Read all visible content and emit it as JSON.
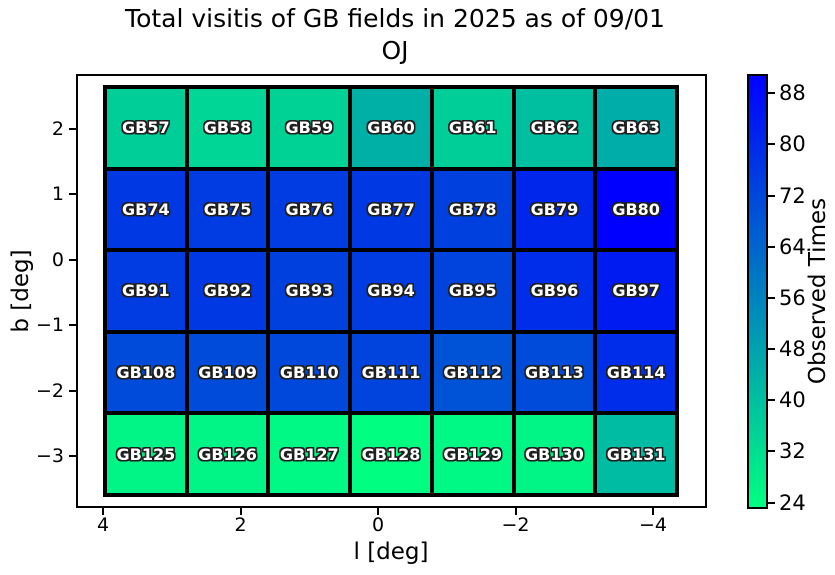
{
  "chart_data": {
    "type": "heatmap",
    "title": "Total visitis of GB fields in 2025 as of 09/01",
    "subtitle": "OJ",
    "xlabel": "l [deg]",
    "ylabel": "b [deg]",
    "x_axis_reversed": true,
    "x_ticks": [
      "4",
      "2",
      "0",
      "−2",
      "−4"
    ],
    "y_ticks": [
      "2",
      "1",
      "0",
      "−1",
      "−2",
      "−3"
    ],
    "grid": {
      "rows": 5,
      "cols": 7
    },
    "colorbar": {
      "label": "Observed Times",
      "ticks": [
        88,
        80,
        72,
        64,
        56,
        48,
        40,
        32,
        24
      ],
      "vmin": 23,
      "vmax": 91,
      "colormap_name": "winter_r",
      "color_low": "#00FF80",
      "color_high": "#0000FF"
    },
    "rows": [
      {
        "labels": [
          "GB57",
          "GB58",
          "GB59",
          "GB60",
          "GB61",
          "GB62",
          "GB63"
        ],
        "values": [
          36,
          34,
          35,
          44,
          36,
          40,
          45
        ]
      },
      {
        "labels": [
          "GB74",
          "GB75",
          "GB76",
          "GB77",
          "GB78",
          "GB79",
          "GB80"
        ],
        "values": [
          76,
          75,
          75,
          76,
          74,
          81,
          91
        ]
      },
      {
        "labels": [
          "GB91",
          "GB92",
          "GB93",
          "GB94",
          "GB95",
          "GB96",
          "GB97"
        ],
        "values": [
          75,
          76,
          74,
          75,
          73,
          79,
          84
        ]
      },
      {
        "labels": [
          "GB108",
          "GB109",
          "GB110",
          "GB111",
          "GB112",
          "GB113",
          "GB114"
        ],
        "values": [
          71,
          71,
          72,
          73,
          69,
          71,
          79
        ]
      },
      {
        "labels": [
          "GB125",
          "GB126",
          "GB127",
          "GB128",
          "GB129",
          "GB130",
          "GB131"
        ],
        "values": [
          26,
          26,
          25,
          23,
          25,
          26,
          41
        ]
      }
    ]
  }
}
